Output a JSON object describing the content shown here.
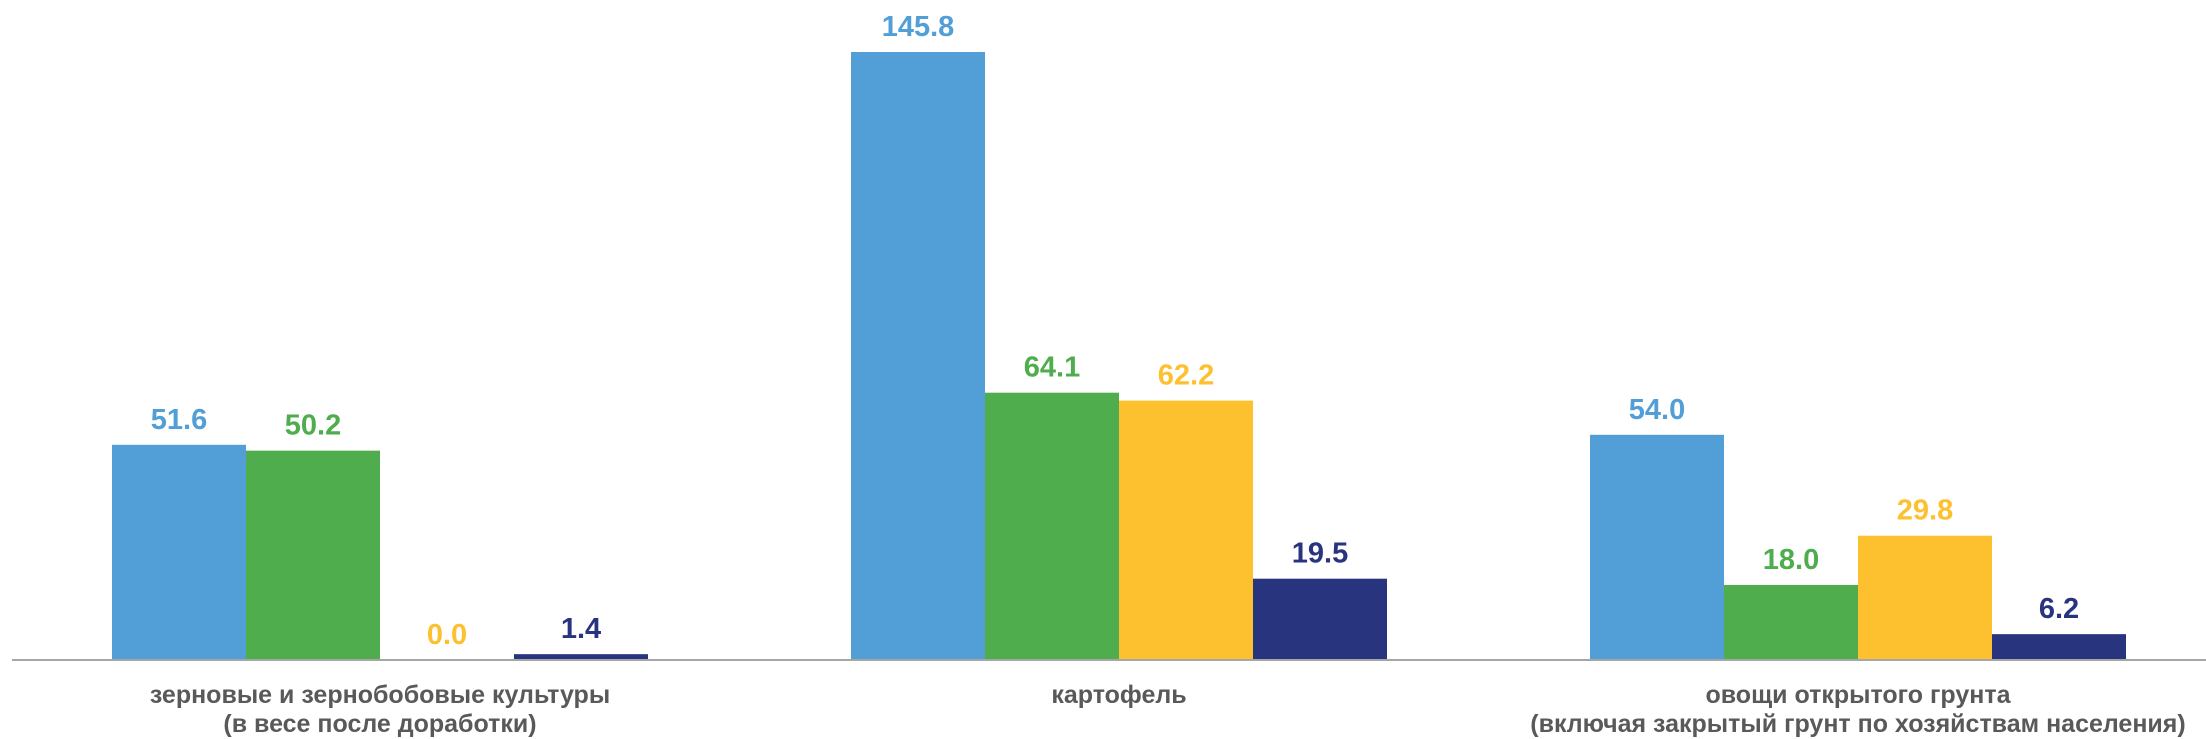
{
  "chart_data": {
    "type": "bar",
    "categories": [
      [
        "зерновые и зернобобовые культуры",
        "(в весе после доработки)"
      ],
      [
        "картофель"
      ],
      [
        "овощи открытого грунта",
        "(включая закрытый грунт по хозяйствам населения)"
      ]
    ],
    "series": [
      {
        "values": [
          51.6,
          145.8,
          54.0
        ],
        "labels": [
          "51.6",
          "145.8",
          "54.0"
        ],
        "color": "#529fd7"
      },
      {
        "values": [
          50.2,
          64.1,
          18.0
        ],
        "labels": [
          "50.2",
          "64.1",
          "18.0"
        ],
        "color": "#4fad4e"
      },
      {
        "values": [
          0.0,
          62.2,
          29.8
        ],
        "labels": [
          "0.0",
          "62.2",
          "29.8"
        ],
        "color": "#fdc02e"
      },
      {
        "values": [
          1.4,
          19.5,
          6.2
        ],
        "labels": [
          "1.4",
          "19.5",
          "6.2"
        ],
        "color": "#29347f"
      }
    ],
    "ylim": [
      0,
      145.8
    ],
    "grid": false,
    "axis_color": "#a6a6a6"
  }
}
